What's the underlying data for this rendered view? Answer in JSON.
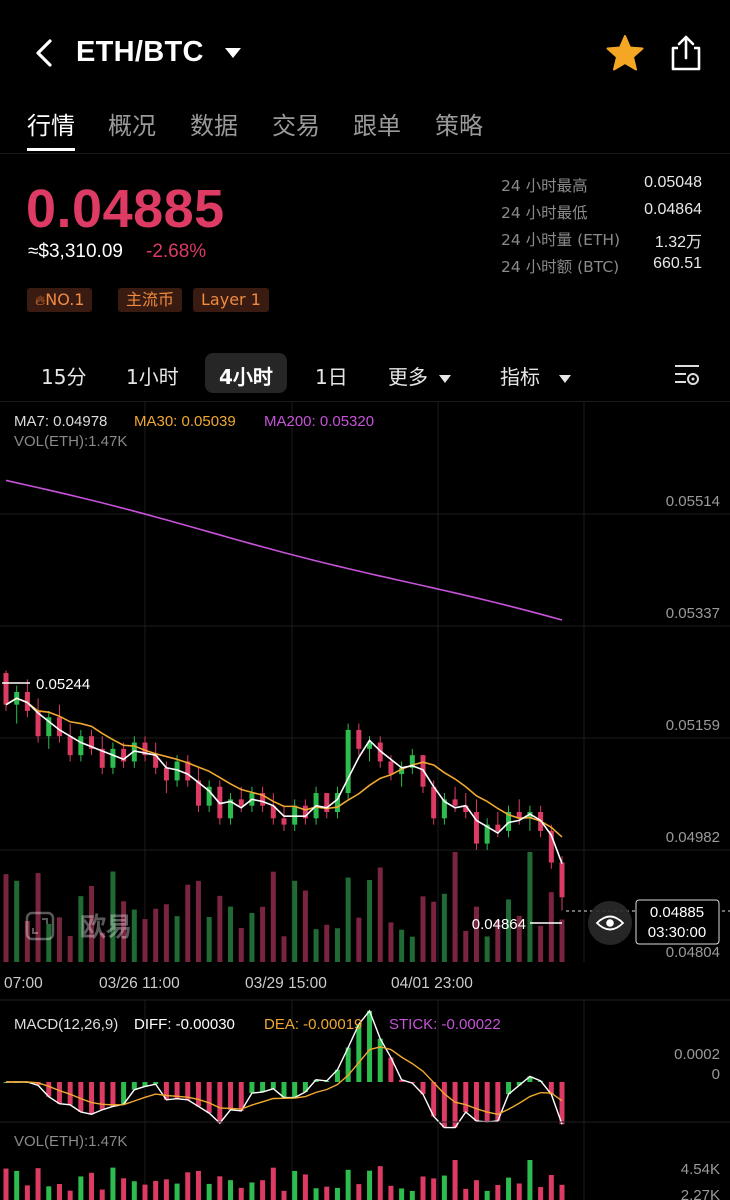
{
  "header": {
    "pair": "ETH/BTC",
    "icons": [
      "back-chevron-icon",
      "dropdown-caret-icon",
      "star-icon",
      "share-icon"
    ],
    "star_color": "#f5a623"
  },
  "tabs": [
    {
      "label": "行情",
      "active": true
    },
    {
      "label": "概况"
    },
    {
      "label": "数据"
    },
    {
      "label": "交易"
    },
    {
      "label": "跟单"
    },
    {
      "label": "策略"
    }
  ],
  "ticker": {
    "price": "0.04885",
    "usd": "≈$3,310.09",
    "change": "-2.68%",
    "down_color": "#dd3b64",
    "up_color": "#2dbd4e",
    "tags": [
      "NO.1",
      "主流币",
      "Layer 1"
    ],
    "stats": [
      {
        "label": "24 小时最高",
        "value": "0.05048"
      },
      {
        "label": "24 小时最低",
        "value": "0.04864"
      },
      {
        "label": "24 小时量 (ETH)",
        "value": "1.32万"
      },
      {
        "label": "24 小时额 (BTC)",
        "value": "660.51"
      }
    ]
  },
  "intervals": {
    "items": [
      "15分",
      "1小时",
      "4小时",
      "1日"
    ],
    "active": "4小时",
    "more": "更多",
    "indicators": "指标"
  },
  "chart": {
    "legend": {
      "ma7": "MA7: 0.04978",
      "ma30": "MA30: 0.05039",
      "ma200": "MA200: 0.05320",
      "vol": "VOL(ETH):1.47K"
    },
    "colors": {
      "ma7": "#ffffff",
      "ma30": "#f0a830",
      "ma200": "#c653d8"
    },
    "price_ticks": [
      "0.05514",
      "0.05337",
      "0.05159",
      "0.04982",
      "0.04804"
    ],
    "high_marker": "0.05244",
    "low_marker": "0.04864",
    "last_price": "0.04885",
    "countdown": "03:30:00",
    "time_ticks": [
      "07:00",
      "03/26 11:00",
      "03/29 15:00",
      "04/01 23:00"
    ],
    "watermark": "欧易"
  },
  "macd": {
    "title": "MACD(12,26,9)",
    "diff": "DIFF: -0.00030",
    "dea": "DEA: -0.00019",
    "stick": "STICK: -0.00022",
    "ticks": [
      "0.0002",
      "0"
    ]
  },
  "vol_panel": {
    "title": "VOL(ETH):1.47K",
    "ticks": [
      "4.54K",
      "2.27K"
    ]
  },
  "chart_data": {
    "type": "candlestick",
    "interval": "4小时",
    "y_ticks": [
      0.05514,
      0.05337,
      0.05159,
      0.04982,
      0.04804
    ],
    "x_ticks": [
      "07:00",
      "03/26 11:00",
      "03/29 15:00",
      "04/01 23:00"
    ],
    "ohlc": [
      [
        0.0524,
        0.05244,
        0.0518,
        0.0519
      ],
      [
        0.0519,
        0.0522,
        0.0516,
        0.0521
      ],
      [
        0.0521,
        0.0523,
        0.0517,
        0.0518
      ],
      [
        0.0518,
        0.052,
        0.0513,
        0.0514
      ],
      [
        0.0514,
        0.0518,
        0.0512,
        0.0517
      ],
      [
        0.0517,
        0.0519,
        0.0513,
        0.0514
      ],
      [
        0.0514,
        0.0516,
        0.051,
        0.0511
      ],
      [
        0.0511,
        0.0515,
        0.051,
        0.0514
      ],
      [
        0.0514,
        0.0515,
        0.0511,
        0.0512
      ],
      [
        0.0512,
        0.0514,
        0.0508,
        0.0509
      ],
      [
        0.0509,
        0.0513,
        0.0508,
        0.0512
      ],
      [
        0.0512,
        0.0513,
        0.0509,
        0.051
      ],
      [
        0.051,
        0.0514,
        0.0509,
        0.0513
      ],
      [
        0.0513,
        0.0514,
        0.051,
        0.0511
      ],
      [
        0.0511,
        0.0513,
        0.0508,
        0.0509
      ],
      [
        0.0509,
        0.051,
        0.0505,
        0.0507
      ],
      [
        0.0507,
        0.0511,
        0.0506,
        0.051
      ],
      [
        0.051,
        0.0511,
        0.0506,
        0.0507
      ],
      [
        0.0507,
        0.0509,
        0.0502,
        0.0503
      ],
      [
        0.0503,
        0.0507,
        0.0502,
        0.0506
      ],
      [
        0.0506,
        0.0507,
        0.05,
        0.0501
      ],
      [
        0.0501,
        0.0505,
        0.05,
        0.0504
      ],
      [
        0.0504,
        0.0506,
        0.0502,
        0.0503
      ],
      [
        0.0503,
        0.0506,
        0.0502,
        0.0505
      ],
      [
        0.0505,
        0.0506,
        0.0502,
        0.0503
      ],
      [
        0.0503,
        0.0505,
        0.05,
        0.0501
      ],
      [
        0.0501,
        0.0503,
        0.0499,
        0.05
      ],
      [
        0.05,
        0.0504,
        0.0499,
        0.0503
      ],
      [
        0.0503,
        0.0504,
        0.05,
        0.0501
      ],
      [
        0.0501,
        0.0506,
        0.05,
        0.0505
      ],
      [
        0.0505,
        0.0505,
        0.0501,
        0.0502
      ],
      [
        0.0502,
        0.0506,
        0.0501,
        0.0505
      ],
      [
        0.0505,
        0.0516,
        0.0504,
        0.0515
      ],
      [
        0.0515,
        0.0516,
        0.0511,
        0.0512
      ],
      [
        0.0512,
        0.0514,
        0.051,
        0.0513
      ],
      [
        0.0513,
        0.0514,
        0.0509,
        0.051
      ],
      [
        0.051,
        0.0511,
        0.0507,
        0.0508
      ],
      [
        0.0508,
        0.051,
        0.0506,
        0.0509
      ],
      [
        0.0509,
        0.0512,
        0.0508,
        0.0511
      ],
      [
        0.0511,
        0.0511,
        0.0505,
        0.0506
      ],
      [
        0.0506,
        0.0507,
        0.05,
        0.0501
      ],
      [
        0.0501,
        0.0505,
        0.05,
        0.0504
      ],
      [
        0.0504,
        0.0506,
        0.0502,
        0.0503
      ],
      [
        0.0503,
        0.0505,
        0.0501,
        0.0502
      ],
      [
        0.0502,
        0.0504,
        0.0496,
        0.0497
      ],
      [
        0.0497,
        0.0501,
        0.0496,
        0.05
      ],
      [
        0.05,
        0.0502,
        0.0498,
        0.0499
      ],
      [
        0.0499,
        0.0503,
        0.0498,
        0.0502
      ],
      [
        0.0502,
        0.0504,
        0.05,
        0.0501
      ],
      [
        0.0501,
        0.0503,
        0.0499,
        0.0502
      ],
      [
        0.0502,
        0.0503,
        0.0498,
        0.0499
      ],
      [
        0.0499,
        0.05,
        0.0493,
        0.0494
      ],
      [
        0.0494,
        0.0495,
        0.04864,
        0.04885
      ]
    ]
  }
}
